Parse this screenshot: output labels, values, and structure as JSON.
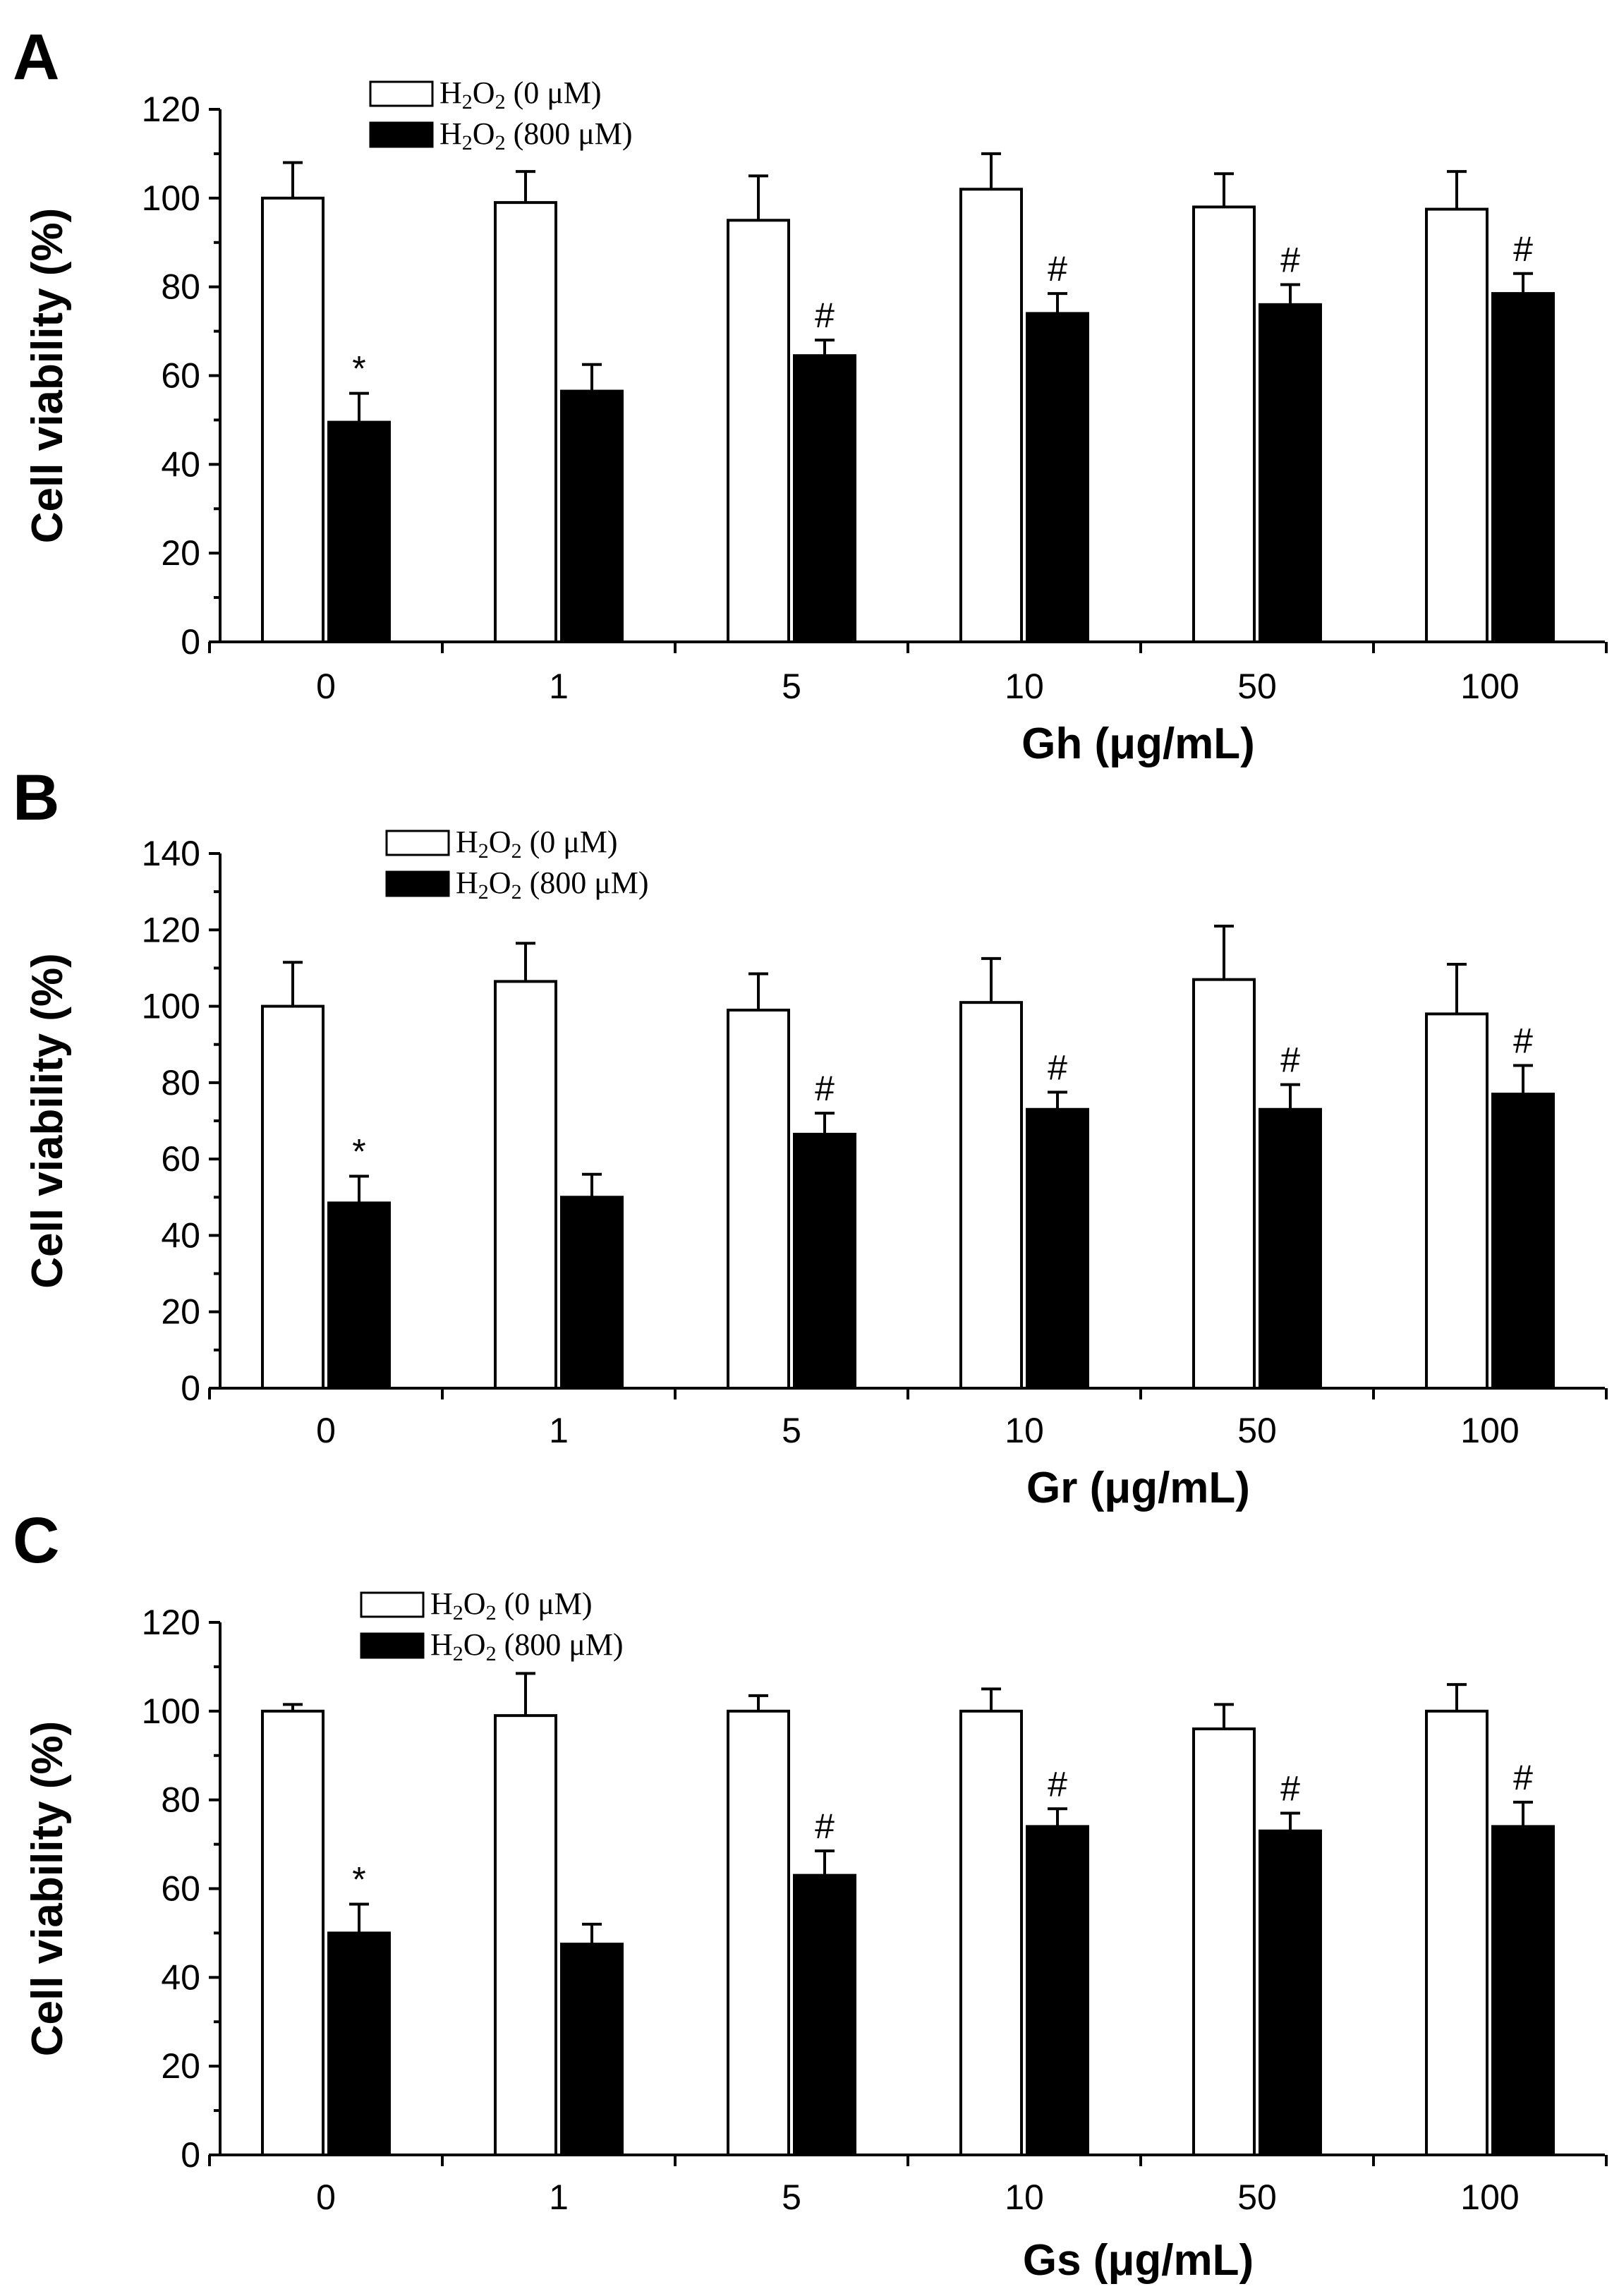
{
  "chart_data": [
    {
      "type": "bar",
      "panel": "A",
      "categories": [
        "0",
        "1",
        "5",
        "10",
        "50",
        "100"
      ],
      "xlabel": "Gh (μg/mL)",
      "ylabel": "Cell viability (%)",
      "ylim": [
        0,
        120
      ],
      "yticks": [
        0,
        20,
        40,
        60,
        80,
        100,
        120
      ],
      "legend": {
        "placement": "top-left"
      },
      "series": [
        {
          "name": "H2O2 (0 μM)",
          "legend_main": "H",
          "legend_sub1": "2",
          "legend_mid": "O",
          "legend_sub2": "2",
          "legend_tail": " (0 μM)",
          "fill": "#ffffff",
          "values": [
            100,
            99,
            95,
            102,
            98,
            97.5
          ],
          "errors": [
            8,
            7,
            10,
            8,
            7.5,
            8.5
          ],
          "marks": [
            "",
            "",
            "",
            "",
            "",
            ""
          ]
        },
        {
          "name": "H2O2 (800 μM)",
          "legend_main": "H",
          "legend_sub1": "2",
          "legend_mid": "O",
          "legend_sub2": "2",
          "legend_tail": " (800 μM)",
          "fill": "#000000",
          "values": [
            49.5,
            56.5,
            64.5,
            74,
            76,
            78.5
          ],
          "errors": [
            6.5,
            6,
            3.5,
            4.5,
            4.5,
            4.5
          ],
          "marks": [
            "*",
            "",
            "#",
            "#",
            "#",
            "#"
          ]
        }
      ]
    },
    {
      "type": "bar",
      "panel": "B",
      "categories": [
        "0",
        "1",
        "5",
        "10",
        "50",
        "100"
      ],
      "xlabel": "Gr (μg/mL)",
      "ylabel": "Cell viability (%)",
      "ylim": [
        0,
        140
      ],
      "yticks": [
        0,
        20,
        40,
        60,
        80,
        100,
        120,
        140
      ],
      "legend": {
        "placement": "top-left"
      },
      "series": [
        {
          "name": "H2O2 (0 μM)",
          "legend_main": "H",
          "legend_sub1": "2",
          "legend_mid": "O",
          "legend_sub2": "2",
          "legend_tail": " (0 μM)",
          "fill": "#ffffff",
          "values": [
            100,
            106.5,
            99,
            101,
            107,
            98
          ],
          "errors": [
            11.5,
            10,
            9.5,
            11.5,
            14,
            13
          ],
          "marks": [
            "",
            "",
            "",
            "",
            "",
            ""
          ]
        },
        {
          "name": "H2O2 (800 μM)",
          "legend_main": "H",
          "legend_sub1": "2",
          "legend_mid": "O",
          "legend_sub2": "2",
          "legend_tail": " (800 μM)",
          "fill": "#000000",
          "values": [
            48.5,
            50,
            66.5,
            73,
            73,
            77
          ],
          "errors": [
            7,
            6,
            5.5,
            4.5,
            6.5,
            7.5
          ],
          "marks": [
            "*",
            "",
            "#",
            "#",
            "#",
            "#"
          ]
        }
      ]
    },
    {
      "type": "bar",
      "panel": "C",
      "categories": [
        "0",
        "1",
        "5",
        "10",
        "50",
        "100"
      ],
      "xlabel": "Gs (μg/mL)",
      "ylabel": "Cell viability (%)",
      "ylim": [
        0,
        120
      ],
      "yticks": [
        0,
        20,
        40,
        60,
        80,
        100,
        120
      ],
      "legend": {
        "placement": "top-left"
      },
      "series": [
        {
          "name": "H2O2 (0 μM)",
          "legend_main": "H",
          "legend_sub1": "2",
          "legend_mid": "O",
          "legend_sub2": "2",
          "legend_tail": " (0 μM)",
          "fill": "#ffffff",
          "values": [
            100,
            99,
            100,
            100,
            96,
            100
          ],
          "errors": [
            1.5,
            9.5,
            3.5,
            5,
            5.5,
            6
          ],
          "marks": [
            "",
            "",
            "",
            "",
            "",
            ""
          ]
        },
        {
          "name": "H2O2 (800 μM)",
          "legend_main": "H",
          "legend_sub1": "2",
          "legend_mid": "O",
          "legend_sub2": "2",
          "legend_tail": " (800 μM)",
          "fill": "#000000",
          "values": [
            50,
            47.5,
            63,
            74,
            73,
            74
          ],
          "errors": [
            6.5,
            4.5,
            5.5,
            4,
            4,
            5.5
          ],
          "marks": [
            "*",
            "",
            "#",
            "#",
            "#",
            "#"
          ]
        }
      ]
    }
  ]
}
